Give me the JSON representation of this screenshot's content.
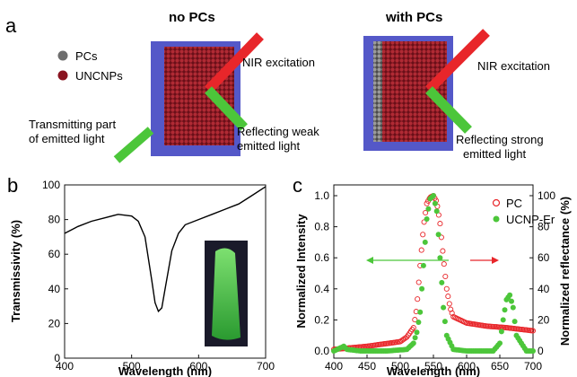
{
  "panel_a": {
    "label": "a",
    "title_left": "no PCs",
    "title_right": "with PCs",
    "legend": [
      {
        "label": "PCs",
        "color": "#6e6e6e"
      },
      {
        "label": "UNCNPs",
        "color": "#8a1420"
      }
    ],
    "left_annotations": {
      "nir": "NIR excitation",
      "transmit_1": "Transmitting part",
      "transmit_2": "of emitted light",
      "reflect_1": "Reflecting weak",
      "reflect_2": "emitted light"
    },
    "right_annotations": {
      "nir": "NIR excitation",
      "reflect_1": "Reflecting strong",
      "reflect_2": "emitted light"
    },
    "colors": {
      "substrate": "#5458c8",
      "particle": "#8a1420",
      "pc": "#7a7a7a",
      "nir": "#e8262a",
      "emission": "#4cc63a"
    }
  },
  "chart_data": [
    {
      "panel": "b",
      "type": "line",
      "xlabel": "Wavelength (nm)",
      "ylabel": "Transmissivity (%)",
      "xlim": [
        400,
        700
      ],
      "ylim": [
        0,
        100
      ],
      "xticks": [
        "400",
        "500",
        "600",
        "700"
      ],
      "yticks": [
        "0",
        "20",
        "40",
        "60",
        "80",
        "100"
      ],
      "series": [
        {
          "color": "#000000",
          "x": [
            400,
            420,
            440,
            460,
            480,
            500,
            510,
            520,
            530,
            535,
            540,
            545,
            550,
            560,
            570,
            580,
            600,
            620,
            640,
            660,
            680,
            700
          ],
          "y": [
            72,
            76,
            79,
            81,
            83,
            82,
            79,
            70,
            45,
            32,
            27,
            29,
            40,
            62,
            72,
            77,
            80,
            83,
            86,
            89,
            94,
            99
          ]
        }
      ],
      "inset": "photo"
    },
    {
      "panel": "c",
      "type": "scatter",
      "xlabel": "Wavelength (nm)",
      "ylabel_left": "Normalized Intensity",
      "ylabel_right": "Normalized reflectance (%)",
      "xlim": [
        400,
        700
      ],
      "ylim_left": [
        0,
        1.0
      ],
      "ylim_right": [
        0,
        100
      ],
      "xticks": [
        "400",
        "450",
        "500",
        "550",
        "600",
        "650",
        "700"
      ],
      "yticks_left": [
        "0.0",
        "0.2",
        "0.4",
        "0.6",
        "0.8",
        "1.0"
      ],
      "yticks_right": [
        "0",
        "20",
        "40",
        "60",
        "80",
        "100"
      ],
      "series": [
        {
          "name": "PC",
          "axis": "right",
          "marker": "open-circle",
          "color": "#e8262a",
          "x": [
            400,
            450,
            500,
            510,
            520,
            525,
            530,
            535,
            540,
            545,
            550,
            555,
            560,
            565,
            570,
            575,
            580,
            600,
            630,
            660,
            700
          ],
          "y": [
            1,
            3,
            6,
            9,
            15,
            28,
            55,
            80,
            95,
            99,
            100,
            96,
            82,
            60,
            40,
            28,
            22,
            18,
            16,
            15,
            13
          ]
        },
        {
          "name": "UCNP-Er",
          "axis": "left",
          "marker": "filled-circle",
          "color": "#4cc63a",
          "x": [
            400,
            410,
            415,
            420,
            440,
            480,
            510,
            520,
            525,
            530,
            535,
            540,
            545,
            550,
            555,
            560,
            565,
            570,
            580,
            600,
            640,
            650,
            655,
            660,
            665,
            670,
            675,
            690,
            700
          ],
          "y": [
            0.0,
            0.02,
            0.03,
            0.01,
            0.0,
            0.0,
            0.01,
            0.05,
            0.12,
            0.25,
            0.55,
            0.85,
            0.98,
            1.0,
            0.9,
            0.6,
            0.28,
            0.1,
            0.01,
            0.0,
            0.0,
            0.05,
            0.2,
            0.33,
            0.36,
            0.28,
            0.1,
            0.0,
            0.0
          ]
        }
      ]
    }
  ]
}
